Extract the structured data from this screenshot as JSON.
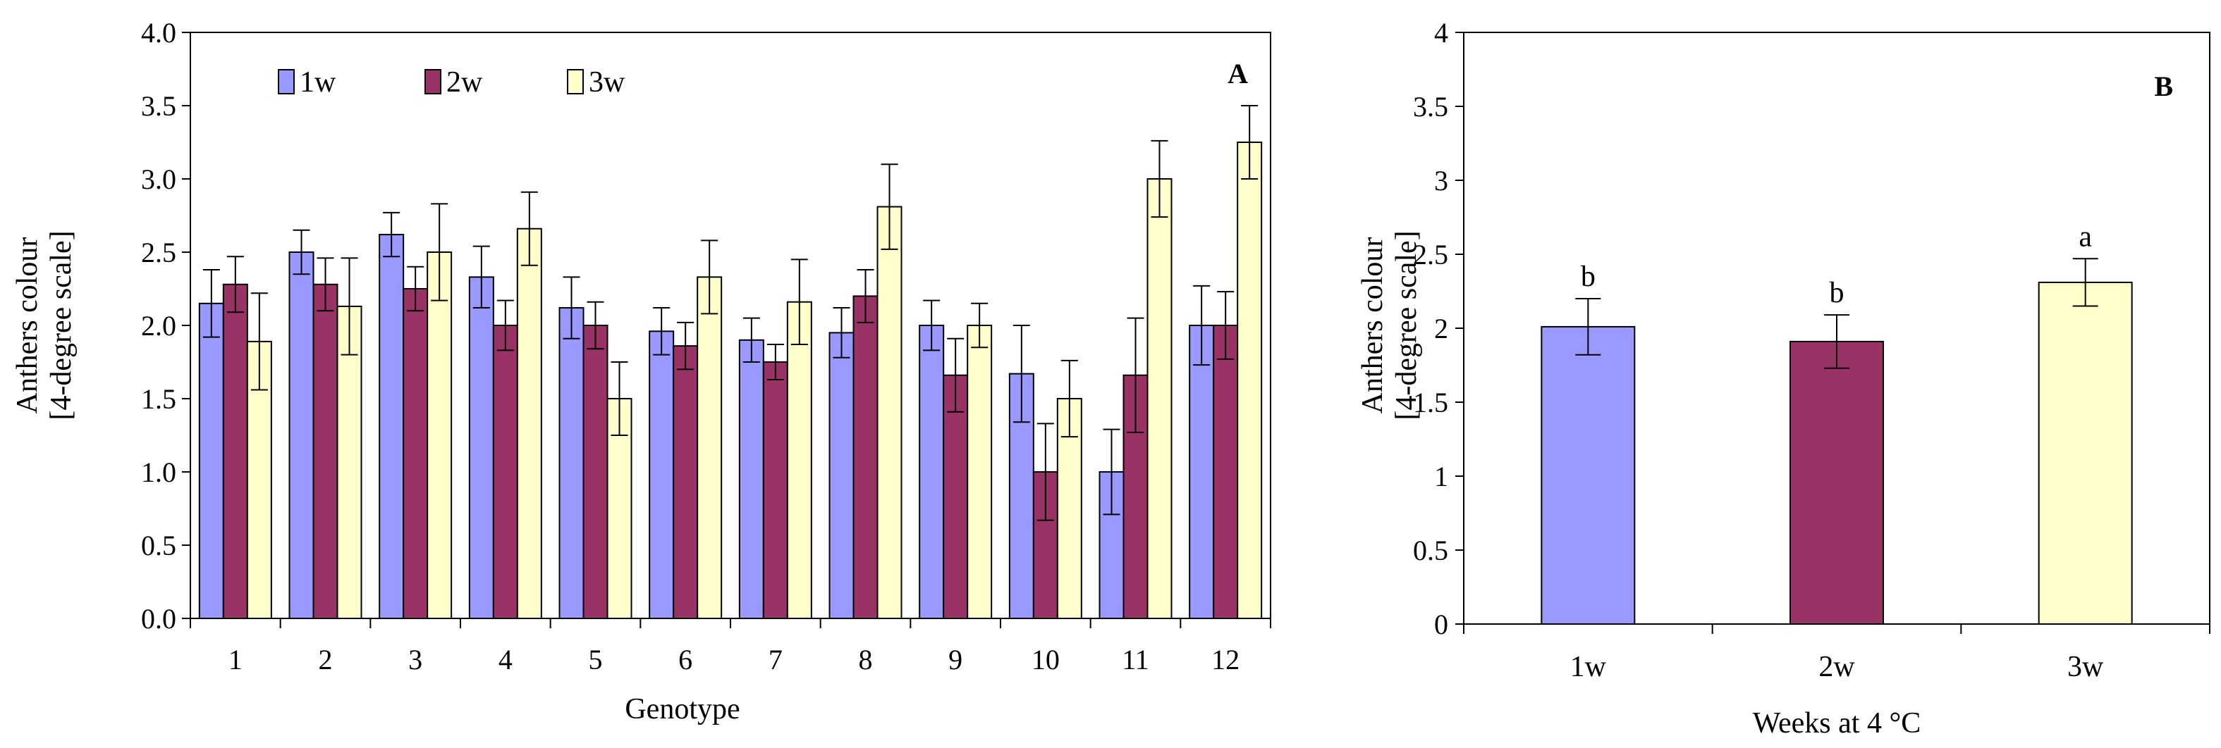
{
  "chart_data": [
    {
      "panel_label": "A",
      "type": "bar",
      "xlabel": "Genotype",
      "ylabel": [
        "Anthers colour",
        "[4-degree scale]"
      ],
      "ylim": [
        0,
        4
      ],
      "yticks": [
        "0.0",
        "0.5",
        "1.0",
        "1.5",
        "2.0",
        "2.5",
        "3.0",
        "3.5",
        "4.0"
      ],
      "categories": [
        "1",
        "2",
        "3",
        "4",
        "5",
        "6",
        "7",
        "8",
        "9",
        "10",
        "11",
        "12"
      ],
      "legend_position": "top-left",
      "grid": false,
      "series": [
        {
          "name": "1w",
          "color": "#9999ff",
          "values": [
            2.15,
            2.5,
            2.62,
            2.33,
            2.12,
            1.96,
            1.9,
            1.95,
            2.0,
            1.67,
            1.0,
            2.0
          ],
          "errors": [
            0.23,
            0.15,
            0.15,
            0.21,
            0.21,
            0.16,
            0.15,
            0.17,
            0.17,
            0.33,
            0.29,
            0.27
          ]
        },
        {
          "name": "2w",
          "color": "#993366",
          "values": [
            2.28,
            2.28,
            2.25,
            2.0,
            2.0,
            1.86,
            1.75,
            2.2,
            1.66,
            1.0,
            1.66,
            2.0
          ],
          "errors": [
            0.19,
            0.18,
            0.15,
            0.17,
            0.16,
            0.16,
            0.12,
            0.18,
            0.25,
            0.33,
            0.39,
            0.23
          ]
        },
        {
          "name": "3w",
          "color": "#ffffcc",
          "values": [
            1.89,
            2.13,
            2.5,
            2.66,
            1.5,
            2.33,
            2.16,
            2.81,
            2.0,
            1.5,
            3.0,
            3.25
          ],
          "errors": [
            0.33,
            0.33,
            0.33,
            0.25,
            0.25,
            0.25,
            0.29,
            0.29,
            0.15,
            0.26,
            0.26,
            0.25
          ]
        }
      ]
    },
    {
      "panel_label": "B",
      "type": "bar",
      "xlabel": "Weeks at 4 °C",
      "ylabel": [
        "Anthers colour",
        "[4-degree scale]"
      ],
      "ylim": [
        0,
        4
      ],
      "yticks": [
        "0",
        "0.5",
        "1",
        "1.5",
        "2",
        "2.5",
        "3",
        "3.5",
        "4"
      ],
      "categories": [
        "1w",
        "2w",
        "3w"
      ],
      "grid": false,
      "values": [
        2.01,
        1.91,
        2.31
      ],
      "errors": [
        0.19,
        0.18,
        0.16
      ],
      "colors": [
        "#9999ff",
        "#993366",
        "#ffffcc"
      ],
      "significance": [
        "b",
        "b",
        "a"
      ]
    }
  ]
}
